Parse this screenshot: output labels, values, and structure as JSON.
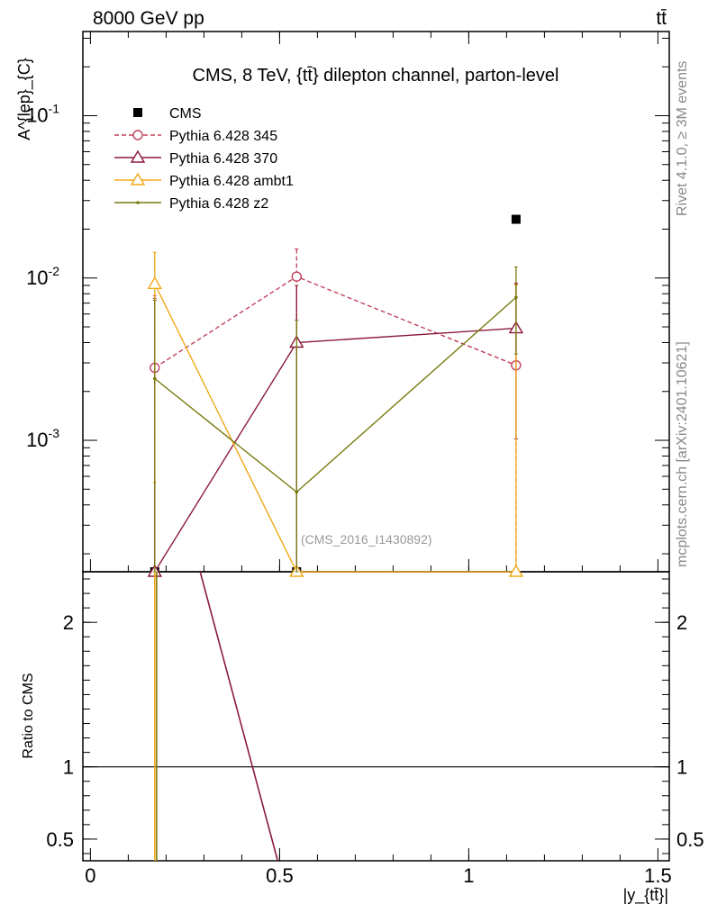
{
  "header": {
    "energy_label": "8000 GeV pp",
    "process_label": "tt̄"
  },
  "side_labels": {
    "events": "Rivet 4.1.0, ≥ 3M events",
    "source": "mcplots.cern.ch [arXiv:2401.10621]"
  },
  "chart_data": {
    "type": "line",
    "title": "CMS, 8 TeV, {tt̄} dilepton channel, parton-level",
    "analysis_tag": "(CMS_2016_I1430892)",
    "ylabel": "A^{lep}_{C}",
    "xlabel": "|y_{tt̄}|",
    "ratio_ylabel": "Ratio to CMS",
    "xlim": [
      -0.02,
      1.53
    ],
    "ylim": [
      0.000155,
      0.33
    ],
    "yscale": "log",
    "ratio_ylim": [
      0.35,
      2.35
    ],
    "x_ticks": [
      {
        "v": 0,
        "label": "0"
      },
      {
        "v": 0.5,
        "label": "0.5"
      },
      {
        "v": 1,
        "label": "1"
      },
      {
        "v": 1.5,
        "label": "1.5"
      }
    ],
    "y_ticks": [
      {
        "v": 0.1,
        "label": "10^{-1}"
      },
      {
        "v": 0.01,
        "label": "10^{-2}"
      },
      {
        "v": 0.001,
        "label": "10^{-3}"
      }
    ],
    "ratio_ticks": [
      {
        "v": 0.5,
        "label": "0.5"
      },
      {
        "v": 1,
        "label": "1"
      },
      {
        "v": 2,
        "label": "2"
      }
    ],
    "legend_position": "top-left",
    "series": [
      {
        "name": "CMS",
        "color": "#000000",
        "marker": "square",
        "line": "none",
        "x": [
          0.17,
          0.545,
          1.125
        ],
        "y": [
          0.000155,
          0.000155,
          0.023
        ]
      },
      {
        "name": "Pythia 6.428 345",
        "color": "#c0405a",
        "marker": "circle",
        "line": "dashed",
        "x": [
          0.17,
          0.545,
          1.125
        ],
        "y": [
          0.0028,
          0.0102,
          0.0029
        ],
        "err_hi": [
          0.0078,
          0.0151,
          0.0093
        ],
        "err_lo": [
          0.000155,
          0.0055,
          0.000155
        ]
      },
      {
        "name": "Pythia 6.428 370",
        "color": "#8b1a3a",
        "marker": "triangle",
        "line": "solid",
        "x": [
          0.17,
          0.545,
          1.125
        ],
        "y": [
          0.000155,
          0.004,
          0.0049
        ],
        "err_hi": [
          0.0075,
          0.009,
          0.0092
        ],
        "err_lo": [
          0.000155,
          0.000155,
          0.00102
        ]
      },
      {
        "name": "Pythia 6.428 ambt1",
        "color": "#f0a818",
        "marker": "triangle",
        "line": "solid",
        "x": [
          0.17,
          0.545,
          1.125
        ],
        "y": [
          0.0092,
          0.000155,
          0.000155
        ],
        "err_hi": [
          0.0144,
          0.000155,
          0.009
        ],
        "err_lo": [
          0.00055,
          0.000155,
          0.000155
        ]
      },
      {
        "name": "Pythia 6.428 z2",
        "color": "#7a7a10",
        "marker": "dot",
        "line": "solid",
        "x": [
          0.17,
          0.545,
          1.125
        ],
        "y": [
          0.0024,
          0.00048,
          0.0076
        ],
        "err_hi": [
          0.0073,
          0.0055,
          0.0117
        ],
        "err_lo": [
          0.000155,
          0.000155,
          0.0034
        ]
      }
    ],
    "ratio_series": [
      {
        "name": "Pythia 6.428 370",
        "color": "#8b1a3a",
        "x": [
          0.29,
          0.495
        ],
        "y": [
          2.35,
          0.35
        ]
      },
      {
        "name": "Pythia 6.428 ambt1",
        "color": "#f0a818",
        "x": [
          0.17,
          0.17
        ],
        "y": [
          2.35,
          0.35
        ]
      },
      {
        "name": "Pythia 6.428 z2",
        "color": "#7a7a10",
        "x": [
          0.175,
          0.175
        ],
        "y": [
          2.35,
          0.35
        ]
      }
    ]
  }
}
